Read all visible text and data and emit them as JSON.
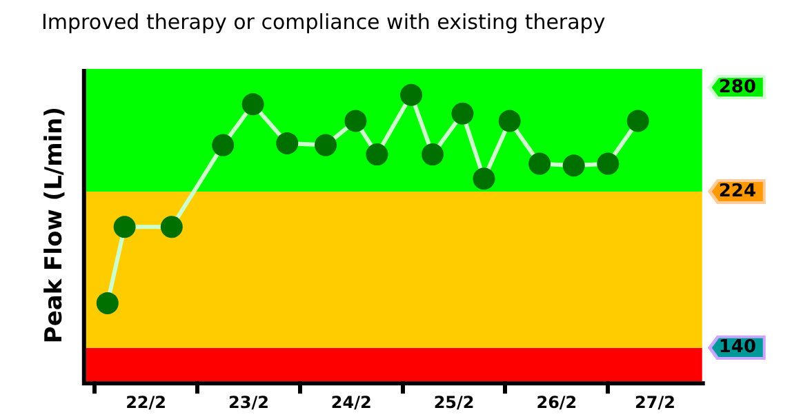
{
  "chart_data": {
    "type": "line",
    "title": "Improved therapy or compliance with existing therapy",
    "ylabel": "Peak Flow (L/min)",
    "x": [
      "--02-22T03:00",
      "--02-22T07:00",
      "--02-22T18:00",
      "--02-23T06:00",
      "--02-23T13:00",
      "--02-23T21:00",
      "--02-24T06:00",
      "--02-24T13:00",
      "--02-24T18:00",
      "--02-25T02:00",
      "--02-25T07:00",
      "--02-25T14:00",
      "--02-25T19:00",
      "--02-26T01:00",
      "--02-26T08:00",
      "--02-26T16:00",
      "--02-27T00:00",
      "--02-27T07:00"
    ],
    "series": [
      {
        "color": "#007000",
        "values": [
          164,
          205,
          205,
          249,
          271,
          250,
          249,
          262,
          244,
          276,
          244,
          266,
          231,
          262,
          239,
          238,
          239,
          262
        ]
      }
    ],
    "xlim": [
      "--02-21T22:00",
      "--02-27T22:00"
    ],
    "xticks": [
      {
        "value": "--02-22T00:00",
        "label": null
      },
      {
        "value": "--02-22T12:00",
        "label": "22/2"
      },
      {
        "value": "--02-23T00:00",
        "label": null
      },
      {
        "value": "--02-23T12:00",
        "label": "23/2"
      },
      {
        "value": "--02-24T00:00",
        "label": null
      },
      {
        "value": "--02-24T12:00",
        "label": "24/2"
      },
      {
        "value": "--02-25T00:00",
        "label": null
      },
      {
        "value": "--02-25T12:00",
        "label": "25/2"
      },
      {
        "value": "--02-26T00:00",
        "label": null
      },
      {
        "value": "--02-26T12:00",
        "label": "26/2"
      },
      {
        "value": "--02-27T00:00",
        "label": null
      },
      {
        "value": "--02-27T11:00",
        "label": "27/2"
      }
    ],
    "ylim": [
      122,
      290
    ],
    "yticks": [
      140,
      224,
      280
    ],
    "bands": [
      {
        "axis": "y",
        "from": 122,
        "to": 140,
        "color": "#ff0000"
      },
      {
        "axis": "y",
        "from": 140,
        "to": 224,
        "color": "#ffcc00"
      },
      {
        "axis": "y",
        "from": 224,
        "to": 290,
        "color": "#00ff00"
      }
    ],
    "marker": "circle",
    "line_style": "solid",
    "grid": false,
    "legend": false
  }
}
